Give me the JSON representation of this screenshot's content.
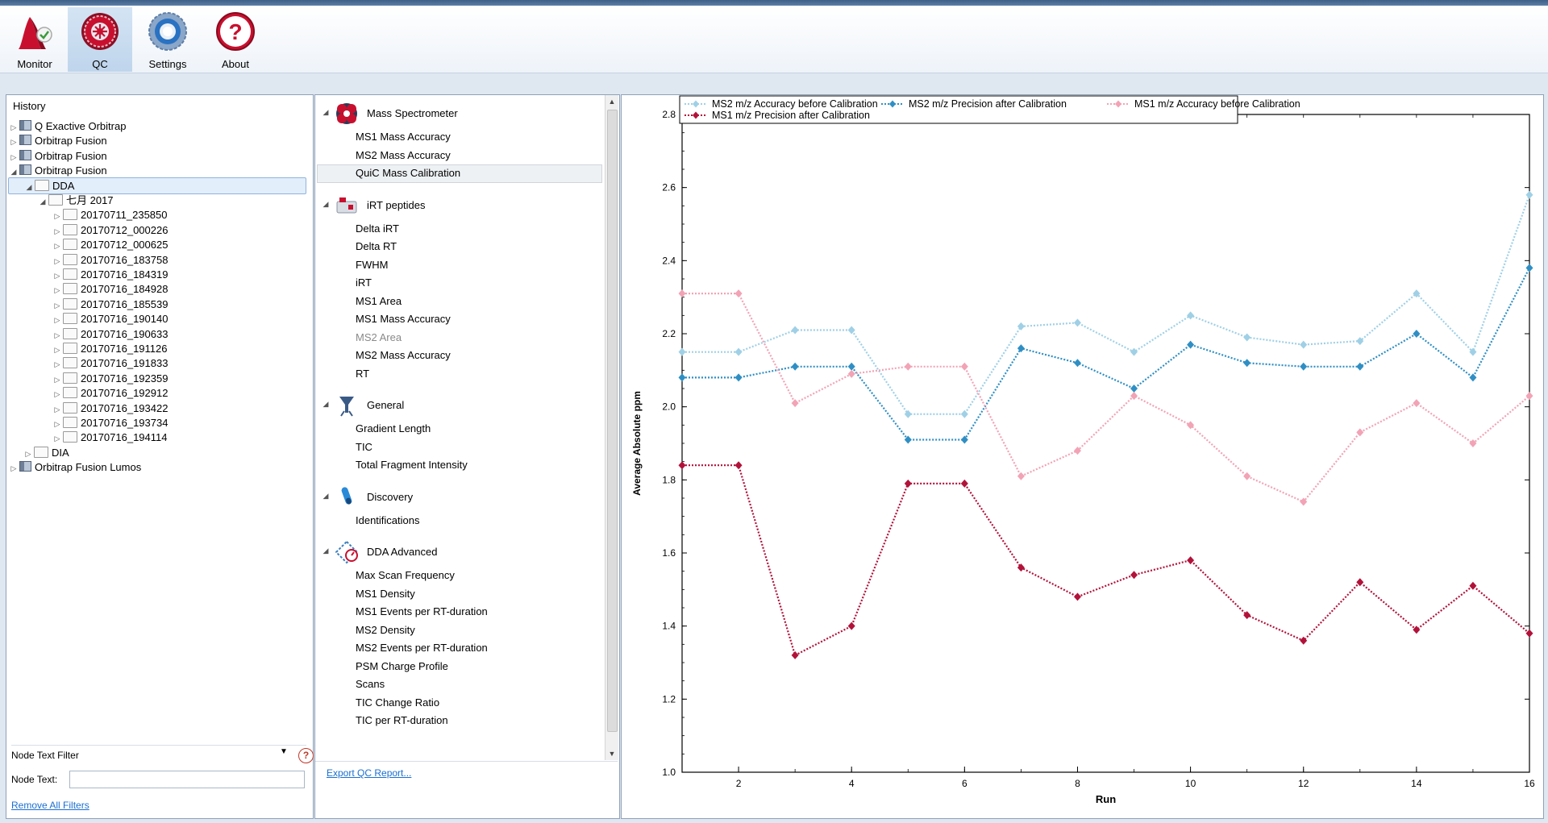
{
  "toolbar": {
    "buttons": [
      {
        "label": "Monitor",
        "icon": "monitor-icon"
      },
      {
        "label": "QC",
        "icon": "qc-icon",
        "selected": true
      },
      {
        "label": "Settings",
        "icon": "settings-icon"
      },
      {
        "label": "About",
        "icon": "about-icon"
      }
    ]
  },
  "history": {
    "title": "History",
    "nodes": [
      {
        "label": "Q Exactive Orbitrap",
        "expanded": false
      },
      {
        "label": "Orbitrap Fusion",
        "expanded": false
      },
      {
        "label": "Orbitrap Fusion",
        "expanded": false
      },
      {
        "label": "Orbitrap Fusion",
        "expanded": true
      },
      {
        "label": "DDA",
        "expanded": true,
        "selected": true
      },
      {
        "label": "七月 2017",
        "expanded": true
      },
      {
        "label": "20170711_235850"
      },
      {
        "label": "20170712_000226"
      },
      {
        "label": "20170712_000625"
      },
      {
        "label": "20170716_183758"
      },
      {
        "label": "20170716_184319"
      },
      {
        "label": "20170716_184928"
      },
      {
        "label": "20170716_185539"
      },
      {
        "label": "20170716_190140"
      },
      {
        "label": "20170716_190633"
      },
      {
        "label": "20170716_191126"
      },
      {
        "label": "20170716_191833"
      },
      {
        "label": "20170716_192359"
      },
      {
        "label": "20170716_192912"
      },
      {
        "label": "20170716_193422"
      },
      {
        "label": "20170716_193734"
      },
      {
        "label": "20170716_194114"
      },
      {
        "label": "DIA",
        "expanded": false
      },
      {
        "label": "Orbitrap Fusion Lumos",
        "expanded": false
      }
    ],
    "filter_combo": "Node Text Filter",
    "node_text_label": "Node Text:",
    "node_text_value": "",
    "remove_filters": "Remove All Filters"
  },
  "qc": {
    "categories": [
      {
        "label": "Mass Spectrometer",
        "icon": "mass-spectrometer-icon",
        "items": [
          "MS1 Mass Accuracy",
          "MS2 Mass Accuracy",
          "QuiC Mass Calibration"
        ]
      },
      {
        "label": "iRT peptides",
        "icon": "irt-peptides-icon",
        "items": [
          "Delta iRT",
          "Delta RT",
          "FWHM",
          "iRT",
          "MS1 Area",
          "MS1 Mass Accuracy",
          "MS2 Area",
          "MS2 Mass Accuracy",
          "RT"
        ]
      },
      {
        "label": "General",
        "icon": "general-icon",
        "items": [
          "Gradient Length",
          "TIC",
          "Total Fragment Intensity"
        ]
      },
      {
        "label": "Discovery",
        "icon": "discovery-icon",
        "items": [
          "Identifications"
        ]
      },
      {
        "label": "DDA Advanced",
        "icon": "dda-advanced-icon",
        "items": [
          "Max Scan Frequency",
          "MS1 Density",
          "MS1 Events per RT-duration",
          "MS2 Density",
          "MS2 Events per RT-duration",
          "PSM Charge Profile",
          "Scans",
          "TIC Change Ratio",
          "TIC per RT-duration"
        ]
      }
    ],
    "selected_item": "QuiC Mass Calibration",
    "disabled_item": "MS2 Area",
    "export_link": "Export QC Report..."
  },
  "chart_data": {
    "type": "line",
    "xlabel": "Run",
    "ylabel": "Average Absolute ppm",
    "xlim": [
      1,
      16
    ],
    "ylim": [
      1.0,
      2.8
    ],
    "x_ticks": [
      2,
      4,
      6,
      8,
      10,
      12,
      14,
      16
    ],
    "y_ticks": [
      1.0,
      1.2,
      1.4,
      1.6,
      1.8,
      2.0,
      2.2,
      2.4,
      2.6,
      2.8
    ],
    "legend_position": "top",
    "x": [
      1,
      2,
      3,
      4,
      5,
      6,
      7,
      8,
      9,
      10,
      11,
      12,
      13,
      14,
      15,
      16
    ],
    "series": [
      {
        "name": "MS2 m/z Accuracy before Calibration",
        "color": "#9fd0e6",
        "values": [
          2.15,
          2.15,
          2.21,
          2.21,
          1.98,
          1.98,
          2.22,
          2.23,
          2.15,
          2.25,
          2.19,
          2.17,
          2.18,
          2.31,
          2.15,
          2.58
        ]
      },
      {
        "name": "MS2 m/z Precision after Calibration",
        "color": "#2f8fc4",
        "values": [
          2.08,
          2.08,
          2.11,
          2.11,
          1.91,
          1.91,
          2.16,
          2.12,
          2.05,
          2.17,
          2.12,
          2.11,
          2.11,
          2.2,
          2.08,
          2.38
        ]
      },
      {
        "name": "MS1 m/z Accuracy before Calibration",
        "color": "#f2a3b5",
        "values": [
          2.31,
          2.31,
          2.01,
          2.09,
          2.11,
          2.11,
          1.81,
          1.88,
          2.03,
          1.95,
          1.81,
          1.74,
          1.93,
          2.01,
          1.9,
          2.03
        ]
      },
      {
        "name": "MS1 m/z Precision after Calibration",
        "color": "#b2123a",
        "values": [
          1.84,
          1.84,
          1.32,
          1.4,
          1.79,
          1.79,
          1.56,
          1.48,
          1.54,
          1.58,
          1.43,
          1.36,
          1.52,
          1.39,
          1.51,
          1.38
        ]
      }
    ]
  }
}
